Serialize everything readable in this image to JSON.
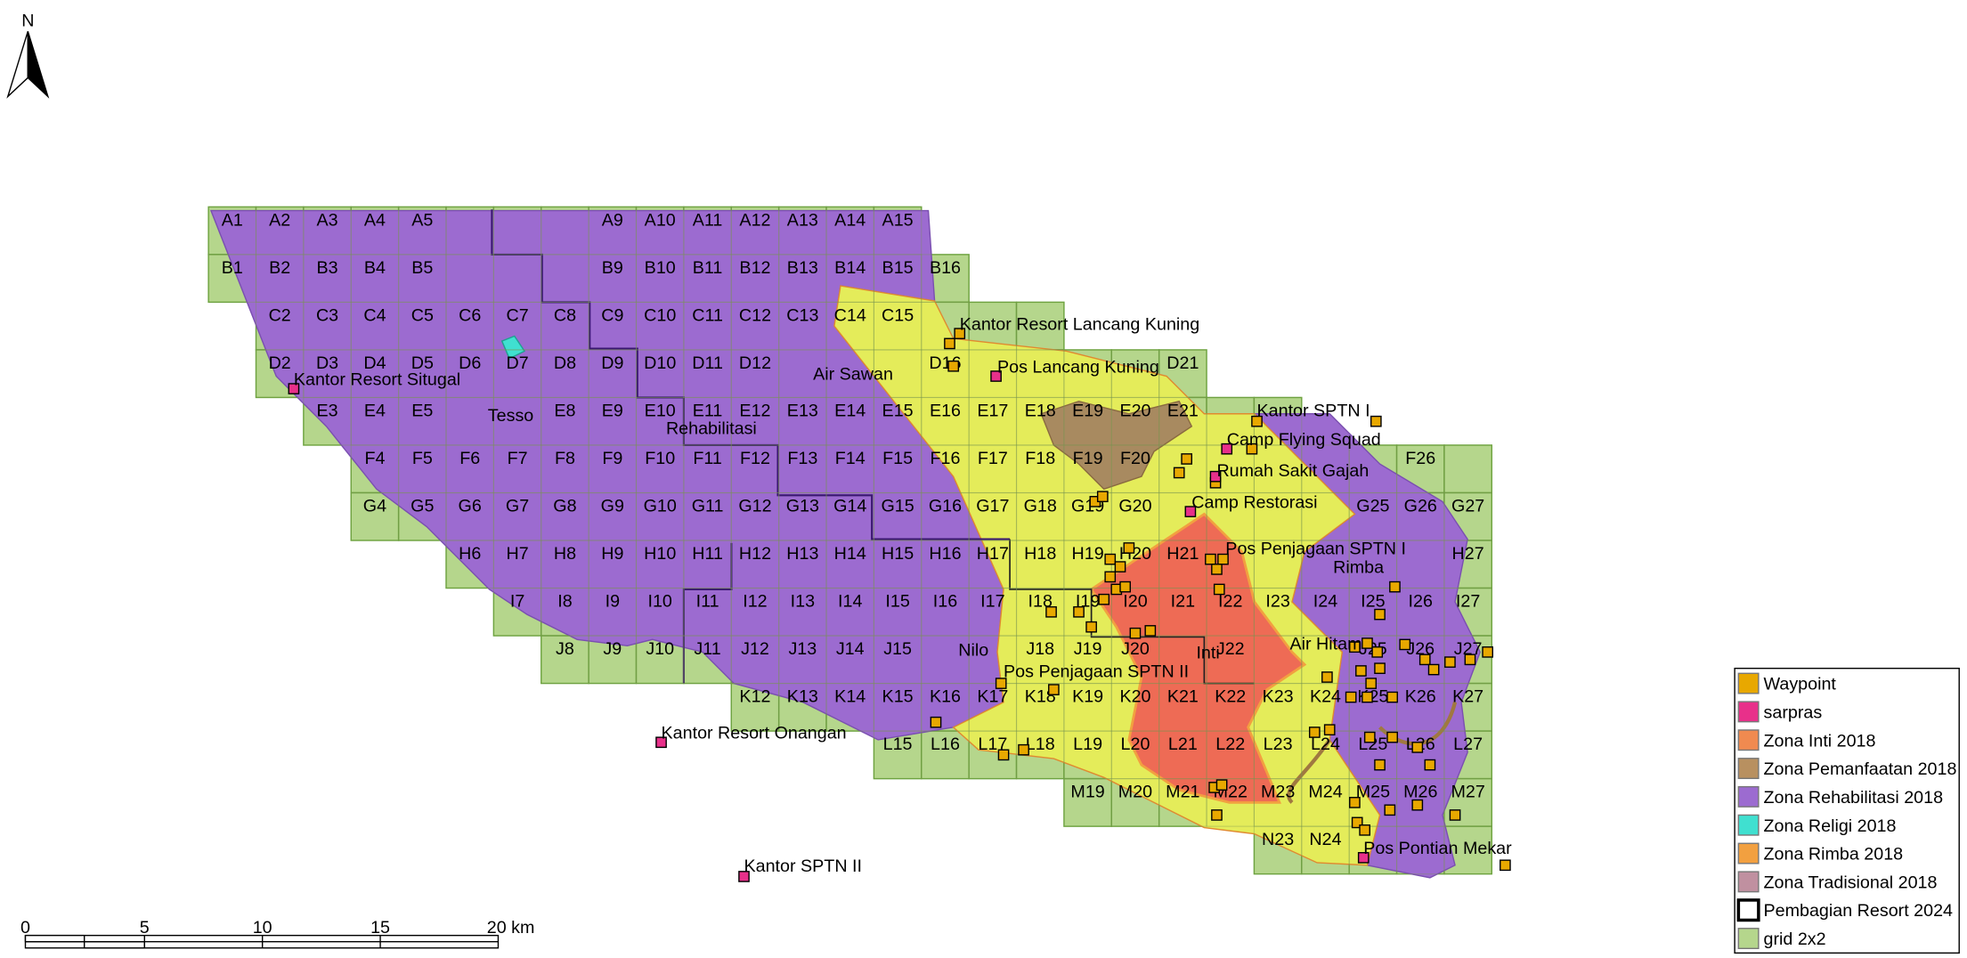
{
  "north_arrow": "N",
  "grid_labels": [
    [
      "A1",
      "A2",
      "A3",
      "A4",
      "A5",
      "A9",
      "A10",
      "A11",
      "A12",
      "A13",
      "A14",
      "A15"
    ],
    [
      "B1",
      "B2",
      "B3",
      "B4",
      "B5",
      "B9",
      "B10",
      "B11",
      "B12",
      "B13",
      "B14",
      "B15",
      "B16"
    ],
    [
      "C2",
      "C3",
      "C4",
      "C5",
      "C6",
      "C7",
      "C8",
      "C9",
      "C10",
      "C11",
      "C12",
      "C13",
      "C14",
      "C15"
    ],
    [
      "D2",
      "D3",
      "D4",
      "D5",
      "D6",
      "D7",
      "D8",
      "D9",
      "D10",
      "D11",
      "D12",
      "D16",
      "D21"
    ],
    [
      "E3",
      "E4",
      "E5",
      "E8",
      "E9",
      "E10",
      "E11",
      "E12",
      "E13",
      "E14",
      "E15",
      "E16",
      "E17",
      "E18",
      "E19",
      "E20",
      "E21"
    ],
    [
      "F4",
      "F5",
      "F6",
      "F7",
      "F8",
      "F9",
      "F10",
      "F11",
      "F12",
      "F13",
      "F14",
      "F15",
      "F16",
      "F17",
      "F18",
      "F19",
      "F20",
      "F26"
    ],
    [
      "G4",
      "G5",
      "G6",
      "G7",
      "G8",
      "G9",
      "G10",
      "G11",
      "G12",
      "G13",
      "G14",
      "G15",
      "G16",
      "G17",
      "G18",
      "G19",
      "G20",
      "G25",
      "G26",
      "G27"
    ],
    [
      "H6",
      "H7",
      "H8",
      "H9",
      "H10",
      "H11",
      "H12",
      "H13",
      "H14",
      "H15",
      "H16",
      "H17",
      "H18",
      "H19",
      "H20",
      "H21",
      "H27"
    ],
    [
      "I7",
      "I8",
      "I9",
      "I10",
      "I11",
      "I12",
      "I13",
      "I14",
      "I15",
      "I16",
      "I17",
      "I18",
      "I19",
      "I20",
      "I21",
      "I22",
      "I23",
      "I24",
      "I25",
      "I26",
      "I27"
    ],
    [
      "J8",
      "J9",
      "J10",
      "J11",
      "J12",
      "J13",
      "J14",
      "J15",
      "J18",
      "J19",
      "J20",
      "J22",
      "J25",
      "J26",
      "J27"
    ],
    [
      "K12",
      "K13",
      "K14",
      "K15",
      "K16",
      "K17",
      "K18",
      "K19",
      "K20",
      "K21",
      "K22",
      "K23",
      "K24",
      "K25",
      "K26",
      "K27"
    ],
    [
      "L15",
      "L16",
      "L17",
      "L18",
      "L19",
      "L20",
      "L21",
      "L22",
      "L23",
      "L24",
      "L25",
      "L26",
      "L27"
    ],
    [
      "M19",
      "M20",
      "M21",
      "M22",
      "M23",
      "M24",
      "M25",
      "M26",
      "M27"
    ],
    [
      "N23",
      "N24"
    ]
  ],
  "zone_labels": [
    "Air Sawan",
    "Tesso",
    "Rehabilitasi",
    "Nilo",
    "Inti",
    "Air Hitam",
    "Rimba"
  ],
  "places": [
    "Kantor Resort Lancang Kuning",
    "Pos Lancang Kuning",
    "Kantor Resort Situgal",
    "Kantor SPTN I",
    "Camp Flying Squad",
    "Rumah Sakit Gajah",
    "Camp Restorasi",
    "Pos Penjagaan SPTN I",
    "Pos Penjagaan SPTN II",
    "Kantor Resort Onangan",
    "Kantor SPTN II",
    "Pos Pontian Mekar"
  ],
  "scale_bar": [
    "0",
    "5",
    "10",
    "15",
    "20 km"
  ],
  "legend": [
    {
      "label": "Waypoint",
      "color": "#e8a800"
    },
    {
      "label": "sarpras",
      "color": "#e8308a"
    },
    {
      "label": "Zona Inti 2018",
      "color": "#f08a50"
    },
    {
      "label": "Zona Pemanfaatan 2018",
      "color": "#b89060"
    },
    {
      "label": "Zona Rehabilitasi 2018",
      "color": "#9c6bd0"
    },
    {
      "label": "Zona Religi 2018",
      "color": "#40e0d0"
    },
    {
      "label": "Zona Rimba 2018",
      "color": "#f2a040"
    },
    {
      "label": "Zona Tradisional 2018",
      "color": "#c090a0"
    },
    {
      "label": "Pembagian Resort 2024",
      "color": "#ffffff"
    },
    {
      "label": "grid 2x2",
      "color": "#b5d68c"
    }
  ]
}
